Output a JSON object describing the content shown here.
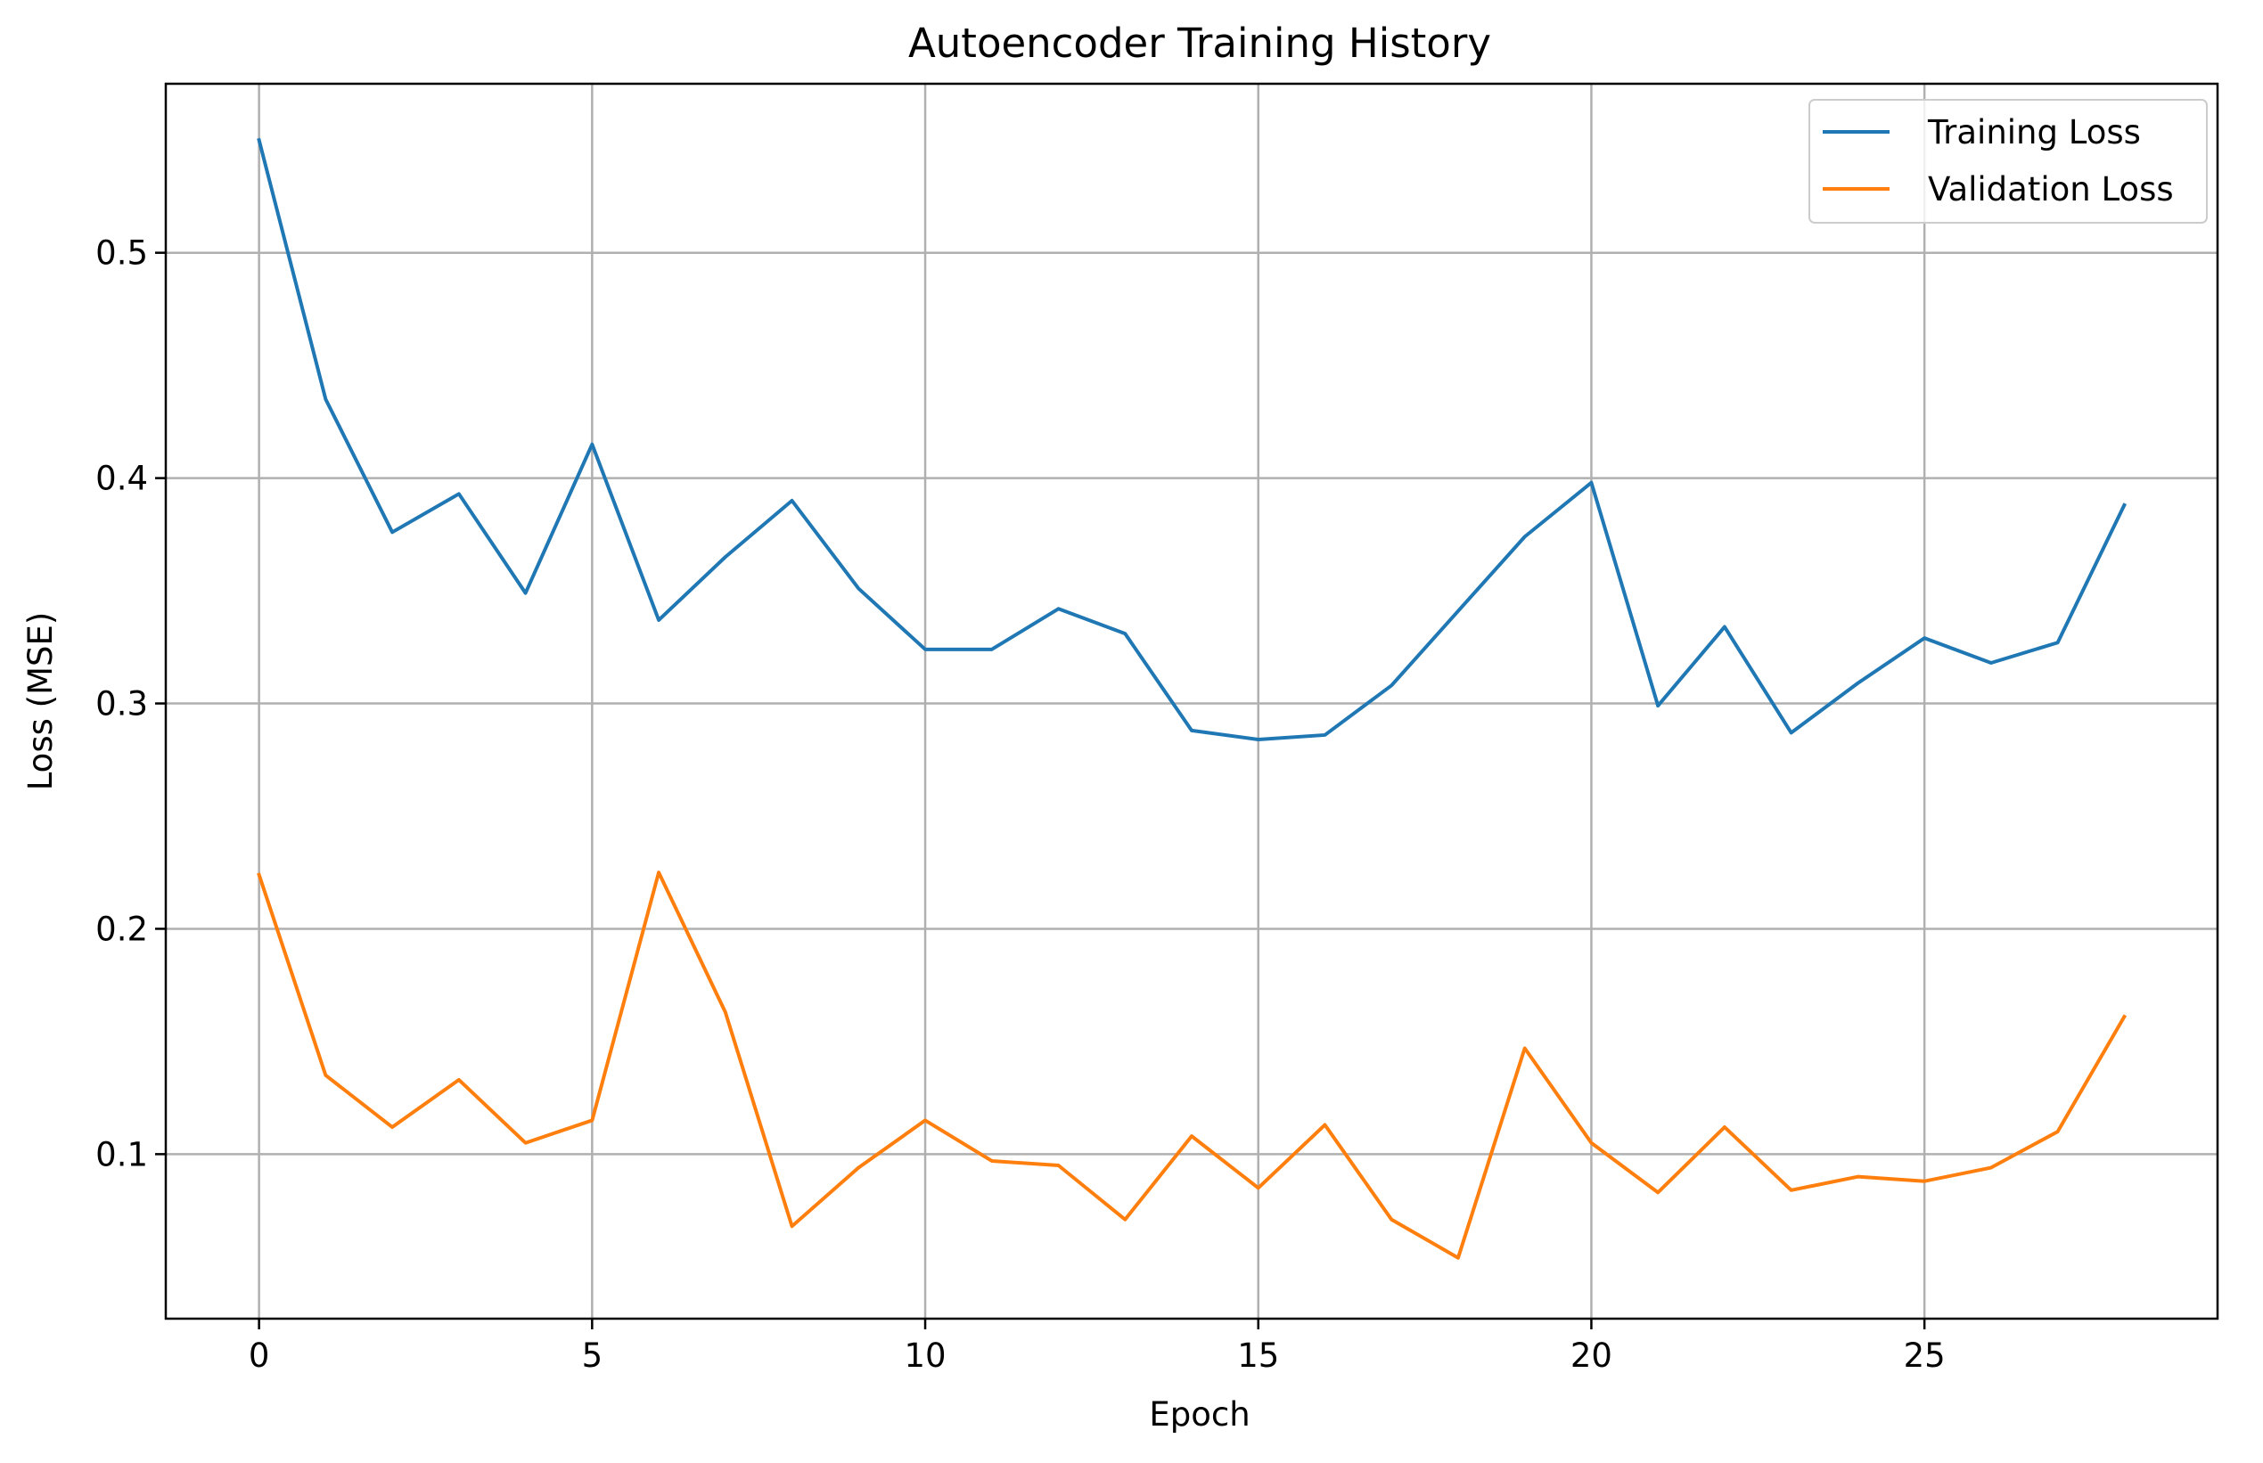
{
  "chart_data": {
    "type": "line",
    "title": "Autoencoder Training History",
    "xlabel": "Epoch",
    "ylabel": "Loss (MSE)",
    "xlim": [
      -1.4,
      29.4
    ],
    "ylim": [
      0.027,
      0.575
    ],
    "xticks": [
      0,
      5,
      10,
      15,
      20,
      25
    ],
    "xtick_labels": [
      "0",
      "5",
      "10",
      "15",
      "20",
      "25"
    ],
    "yticks": [
      0.1,
      0.2,
      0.3,
      0.4,
      0.5
    ],
    "ytick_labels": [
      "0.1",
      "0.2",
      "0.3",
      "0.4",
      "0.5"
    ],
    "grid": true,
    "legend_position": "upper right",
    "x": [
      0,
      1,
      2,
      3,
      4,
      5,
      6,
      7,
      8,
      9,
      10,
      11,
      12,
      13,
      14,
      15,
      16,
      17,
      18,
      19,
      20,
      21,
      22,
      23,
      24,
      25,
      26,
      27,
      28
    ],
    "series": [
      {
        "name": "Training Loss",
        "color": "#1f77b4",
        "values": [
          0.55,
          0.435,
          0.376,
          0.393,
          0.349,
          0.415,
          0.337,
          0.365,
          0.39,
          0.351,
          0.324,
          0.324,
          0.342,
          0.331,
          0.288,
          0.284,
          0.286,
          0.308,
          0.341,
          0.374,
          0.398,
          0.299,
          0.334,
          0.287,
          0.309,
          0.329,
          0.318,
          0.327,
          0.388
        ]
      },
      {
        "name": "Validation Loss",
        "color": "#ff7f0e",
        "values": [
          0.224,
          0.135,
          0.112,
          0.133,
          0.105,
          0.115,
          0.225,
          0.163,
          0.068,
          0.094,
          0.115,
          0.097,
          0.095,
          0.071,
          0.108,
          0.085,
          0.113,
          0.071,
          0.054,
          0.147,
          0.105,
          0.083,
          0.112,
          0.084,
          0.09,
          0.088,
          0.094,
          0.11,
          0.161
        ]
      }
    ]
  }
}
